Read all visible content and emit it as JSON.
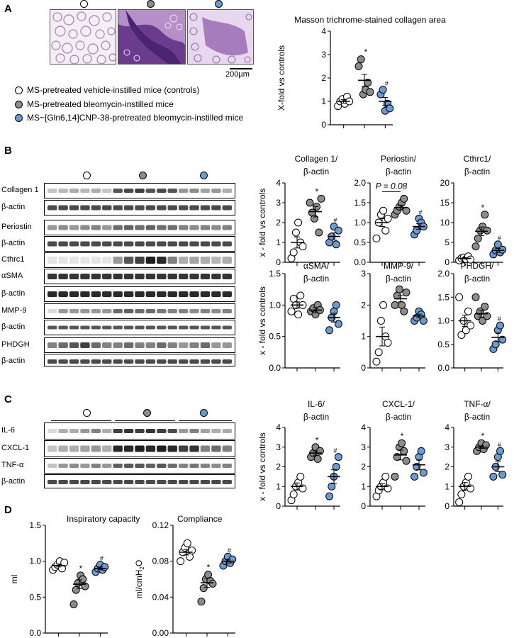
{
  "panels": {
    "a": "A",
    "b": "B",
    "c": "C",
    "d": "D"
  },
  "colors": {
    "control": "#ffffff",
    "bleomycin": "#8c8c8c",
    "cnp": "#6c9bd2"
  },
  "panelA": {
    "scale_bar": "200µm",
    "legend": [
      "MS-pretreated vehicle-instilled mice (controls)",
      "MS-pretreated bleomycin-instilled mice",
      "MS~[Gln6,14]CNP-38-pretreated bleomycin-instilled mice"
    ]
  },
  "panelB": {
    "blot_labels": [
      "Collagen 1",
      "β-actin",
      "Periostin",
      "β-actin",
      "Cthrc1",
      "αSMA",
      "β-actin",
      "MMP-9",
      "β-actin",
      "PHDGH",
      "β-actin"
    ]
  },
  "panelC": {
    "blot_labels": [
      "IL-6",
      "CXCL-1",
      "TNF-α",
      "β-actin"
    ]
  },
  "charts": {
    "masson": {
      "title": "Masson trichrome-stained collagen area",
      "ylabel": "X-fold vs controls",
      "ticks": [
        "0",
        "1",
        "2",
        "3",
        "4"
      ],
      "marks": [
        "",
        "*",
        "#"
      ]
    },
    "collagen": {
      "title1": "Collagen 1/",
      "title2": "β-actin",
      "ylabel": "x - fold vs controls",
      "ticks": [
        "0",
        "1",
        "2",
        "3",
        "4"
      ],
      "marks": [
        "",
        "*",
        "#"
      ]
    },
    "periostin": {
      "title1": "Periostin/",
      "title2": "β-actin",
      "ticks": [
        "0.0",
        "0.5",
        "1.0",
        "1.5",
        "2.0"
      ],
      "marks": [
        "",
        "",
        "#"
      ],
      "pval": "P = 0.08"
    },
    "cthrc1": {
      "title1": "Cthrc1/",
      "title2": "β-actin",
      "ticks": [
        "0",
        "5",
        "10",
        "15",
        "20"
      ],
      "marks": [
        "",
        "*",
        "#"
      ]
    },
    "asma": {
      "title1": "αSMA/",
      "title2": "β-actin",
      "ylabel": "x - fold vs controls",
      "ticks": [
        "0.0",
        "0.5",
        "1.0",
        "1.5"
      ],
      "marks": [
        "",
        "",
        ""
      ]
    },
    "mmp9": {
      "title1": "MMP-9/",
      "title2": "β-actin",
      "ticks": [
        "0",
        "1",
        "2",
        "3"
      ],
      "marks": [
        "",
        "",
        ""
      ]
    },
    "phdgh": {
      "title1": "PHDGH/",
      "title2": "β-actin",
      "ticks": [
        "0.0",
        "0.5",
        "1.0",
        "1.5",
        "2.0"
      ],
      "marks": [
        "",
        "",
        "#"
      ]
    },
    "il6": {
      "title1": "IL-6/",
      "title2": "β-actin",
      "ylabel": "x - fold vs controls",
      "ticks": [
        "0",
        "1",
        "2",
        "3",
        "4"
      ],
      "marks": [
        "",
        "*",
        "#"
      ]
    },
    "cxcl1": {
      "title1": "CXCL-1/",
      "title2": "β-actin",
      "ticks": [
        "0",
        "1",
        "2",
        "3",
        "4"
      ],
      "marks": [
        "",
        "*",
        ""
      ]
    },
    "tnfa": {
      "title1": "TNF-α/",
      "title2": "β-actin",
      "ticks": [
        "0",
        "1",
        "2",
        "3",
        "4"
      ],
      "marks": [
        "",
        "*",
        "#"
      ]
    },
    "ic": {
      "title1": "Inspiratory capacity",
      "ylabel": "ml",
      "ticks": [
        "0.0",
        "0.5",
        "1.0",
        "1.5"
      ],
      "marks": [
        "",
        "*",
        "#"
      ]
    },
    "compliance": {
      "title1": "Compliance",
      "ylabel": "ml/cmH2O",
      "ticks": [
        "0.00",
        "0.04",
        "0.08",
        "0.12"
      ],
      "marks": [
        "",
        "*",
        "#"
      ]
    }
  },
  "chart_data": [
    {
      "id": "masson",
      "type": "scatter",
      "title": "Masson trichrome-stained collagen area",
      "ylabel": "X-fold vs controls",
      "ylim": [
        0,
        4
      ],
      "groups": [
        {
          "values": [
            0.8,
            1.0,
            1.1,
            0.9,
            1.2,
            1.0
          ],
          "mean": 1.0,
          "sem": 0.08
        },
        {
          "values": [
            2.5,
            2.8,
            1.3,
            1.5,
            1.8,
            1.4
          ],
          "mean": 1.9,
          "sem": 0.25
        },
        {
          "values": [
            1.3,
            1.5,
            0.6,
            0.9,
            0.7
          ],
          "mean": 1.0,
          "sem": 0.17
        }
      ]
    },
    {
      "id": "collagen",
      "type": "scatter",
      "title": "Collagen 1/ β-actin",
      "ylabel": "x - fold vs controls",
      "ylim": [
        0,
        4
      ],
      "groups": [
        {
          "values": [
            0.2,
            0.5,
            1.5,
            2.0,
            1.0,
            0.8
          ],
          "mean": 1.0,
          "sem": 0.28
        },
        {
          "values": [
            3.0,
            2.5,
            2.2,
            2.8,
            1.5,
            3.2
          ],
          "mean": 2.55,
          "sem": 0.26
        },
        {
          "values": [
            1.0,
            1.3,
            1.8,
            0.9,
            1.6
          ],
          "mean": 1.3,
          "sem": 0.18
        }
      ]
    },
    {
      "id": "periostin",
      "type": "scatter",
      "title": "Periostin/ β-actin",
      "ylim": [
        0,
        2
      ],
      "groups": [
        {
          "values": [
            0.6,
            1.0,
            1.2,
            1.3,
            0.8,
            1.1
          ],
          "mean": 1.0,
          "sem": 0.1
        },
        {
          "values": [
            1.2,
            1.3,
            1.4,
            1.5,
            1.6,
            1.3
          ],
          "mean": 1.38,
          "sem": 0.06
        },
        {
          "values": [
            0.7,
            0.8,
            1.1,
            1.0,
            0.9
          ],
          "mean": 0.9,
          "sem": 0.07
        }
      ]
    },
    {
      "id": "cthrc1",
      "type": "scatter",
      "title": "Cthrc1/ β-actin",
      "ylim": [
        0,
        20
      ],
      "groups": [
        {
          "values": [
            0.5,
            1.0,
            1.2,
            0.8,
            1.5,
            0.7
          ],
          "mean": 1.0,
          "sem": 0.15
        },
        {
          "values": [
            4.0,
            6.0,
            8.0,
            9.0,
            12.0,
            8.0
          ],
          "mean": 7.8,
          "sem": 1.1
        },
        {
          "values": [
            2.0,
            3.0,
            4.5,
            2.5,
            3.2
          ],
          "mean": 3.0,
          "sem": 0.5
        }
      ]
    },
    {
      "id": "asma",
      "type": "scatter",
      "title": "αSMA/ β-actin",
      "ylabel": "x - fold vs controls",
      "ylim": [
        0,
        1.5
      ],
      "groups": [
        {
          "values": [
            0.9,
            1.1,
            1.0,
            0.85,
            1.15,
            1.0
          ],
          "mean": 1.0,
          "sem": 0.05
        },
        {
          "values": [
            0.9,
            0.95,
            0.85,
            1.0,
            0.92
          ],
          "mean": 0.92,
          "sem": 0.04
        },
        {
          "values": [
            0.6,
            0.8,
            0.9,
            1.0,
            0.7
          ],
          "mean": 0.8,
          "sem": 0.07
        }
      ]
    },
    {
      "id": "mmp9",
      "type": "scatter",
      "title": "MMP-9/ β-actin",
      "ylim": [
        0,
        3
      ],
      "groups": [
        {
          "values": [
            0.2,
            0.5,
            1.5,
            2.0,
            1.0,
            0.8
          ],
          "mean": 1.0,
          "sem": 0.3
        },
        {
          "values": [
            2.0,
            2.3,
            2.5,
            2.0,
            1.8,
            2.4
          ],
          "mean": 2.2,
          "sem": 0.1
        },
        {
          "values": [
            1.5,
            1.6,
            1.8,
            1.7,
            1.5
          ],
          "mean": 1.65,
          "sem": 0.06
        }
      ]
    },
    {
      "id": "phdgh",
      "type": "scatter",
      "title": "PHDGH/ β-actin",
      "ylim": [
        0,
        2
      ],
      "groups": [
        {
          "values": [
            1.5,
            0.7,
            1.0,
            0.8,
            1.2,
            0.9
          ],
          "mean": 1.0,
          "sem": 0.12
        },
        {
          "values": [
            1.5,
            1.1,
            1.2,
            1.0,
            1.3,
            1.1
          ],
          "mean": 1.15,
          "sem": 0.07
        },
        {
          "values": [
            0.4,
            0.5,
            0.8,
            0.9,
            0.6
          ],
          "mean": 0.65,
          "sem": 0.09
        }
      ]
    },
    {
      "id": "il6",
      "type": "scatter",
      "title": "IL-6/ β-actin",
      "ylabel": "x - fold vs controls",
      "ylim": [
        0,
        4
      ],
      "groups": [
        {
          "values": [
            0.3,
            0.6,
            1.0,
            1.2,
            1.5,
            0.9
          ],
          "mean": 1.0,
          "sem": 0.18
        },
        {
          "values": [
            2.5,
            2.7,
            3.0,
            2.4,
            2.8
          ],
          "mean": 2.7,
          "sem": 0.11
        },
        {
          "values": [
            0.5,
            1.0,
            1.5,
            2.0,
            2.5
          ],
          "mean": 1.5,
          "sem": 0.35
        }
      ]
    },
    {
      "id": "cxcl1",
      "type": "scatter",
      "title": "CXCL-1/ β-actin",
      "ylim": [
        0,
        4
      ],
      "groups": [
        {
          "values": [
            0.5,
            0.8,
            1.0,
            1.2,
            1.5,
            0.9
          ],
          "mean": 1.0,
          "sem": 0.14
        },
        {
          "values": [
            1.5,
            2.5,
            3.0,
            3.2,
            2.8,
            2.3
          ],
          "mean": 2.6,
          "sem": 0.25
        },
        {
          "values": [
            1.5,
            2.0,
            2.5,
            2.8,
            1.7
          ],
          "mean": 2.1,
          "sem": 0.25
        }
      ]
    },
    {
      "id": "tnfa",
      "type": "scatter",
      "title": "TNF-α/ β-actin",
      "ylim": [
        0,
        4
      ],
      "groups": [
        {
          "values": [
            0.2,
            0.6,
            1.0,
            1.2,
            1.5,
            0.9
          ],
          "mean": 1.0,
          "sem": 0.2
        },
        {
          "values": [
            2.8,
            3.0,
            3.2,
            2.9,
            3.1
          ],
          "mean": 3.0,
          "sem": 0.07
        },
        {
          "values": [
            1.5,
            2.0,
            2.5,
            2.8,
            1.6
          ],
          "mean": 2.0,
          "sem": 0.25
        }
      ]
    },
    {
      "id": "ic",
      "type": "scatter",
      "title": "Inspiratory capacity",
      "ylabel": "ml",
      "ylim": [
        0,
        1.5
      ],
      "groups": [
        {
          "values": [
            0.88,
            0.92,
            0.95,
            1.0,
            0.9,
            0.98
          ],
          "mean": 0.94,
          "sem": 0.02
        },
        {
          "values": [
            0.4,
            0.6,
            0.7,
            0.8,
            0.75,
            0.65
          ],
          "mean": 0.68,
          "sem": 0.06
        },
        {
          "values": [
            0.85,
            0.9,
            0.95,
            0.88,
            0.92
          ],
          "mean": 0.9,
          "sem": 0.02
        }
      ]
    },
    {
      "id": "compliance",
      "type": "scatter",
      "title": "Compliance",
      "ylabel": "ml/cmH2O",
      "ylim": [
        0,
        0.12
      ],
      "groups": [
        {
          "values": [
            0.08,
            0.09,
            0.095,
            0.1,
            0.085,
            0.092
          ],
          "mean": 0.09,
          "sem": 0.003
        },
        {
          "values": [
            0.035,
            0.05,
            0.06,
            0.065,
            0.058,
            0.055
          ],
          "mean": 0.056,
          "sem": 0.005
        },
        {
          "values": [
            0.075,
            0.08,
            0.085,
            0.078,
            0.082
          ],
          "mean": 0.08,
          "sem": 0.002
        }
      ]
    }
  ]
}
